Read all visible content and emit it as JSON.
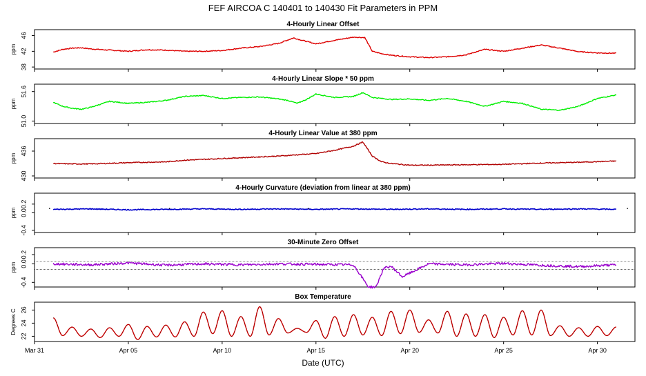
{
  "chart_data": {
    "type": "line",
    "title": "FEF   AIRCOA C  140401 to 140430   Fit Parameters in PPM",
    "xlabel": "Date (UTC)",
    "x_range": [
      "2014-03-31",
      "2014-05-02"
    ],
    "x_ticks": [
      "Mar 31",
      "Apr 05",
      "Apr 10",
      "Apr 15",
      "Apr 20",
      "Apr 25",
      "Apr 30"
    ],
    "x_tick_days": [
      0,
      5,
      10,
      15,
      20,
      25,
      30
    ],
    "x_data_range_days": [
      1,
      31
    ],
    "panels": [
      {
        "title": "4-Hourly Linear Offset",
        "ylabel": "ppm",
        "ylim": [
          37.5,
          47.5
        ],
        "yticks": [
          38,
          42,
          46
        ],
        "color": "#dd0000",
        "days": [
          1,
          1.5,
          2,
          2.5,
          3,
          4,
          5,
          6,
          7,
          8,
          9,
          10,
          11,
          12,
          13,
          13.8,
          14.5,
          15,
          16,
          17,
          17.6,
          18,
          18.5,
          19,
          20,
          21,
          22,
          23,
          24,
          25,
          26,
          27,
          28,
          29,
          30,
          31
        ],
        "values": [
          41.8,
          42.5,
          42.8,
          42.9,
          42.6,
          42.3,
          42.0,
          42.4,
          42.3,
          42.0,
          42.0,
          42.2,
          42.8,
          43.2,
          44.0,
          45.4,
          44.5,
          43.9,
          44.8,
          45.6,
          45.5,
          42.0,
          41.4,
          41.0,
          40.6,
          40.4,
          40.6,
          41.1,
          42.5,
          42.0,
          42.8,
          43.6,
          42.8,
          41.9,
          41.6,
          41.5
        ]
      },
      {
        "title": "4-Hourly Linear Slope * 50 ppm",
        "ylabel": "ppm",
        "ylim": [
          50.95,
          51.75
        ],
        "yticks": [
          51.0,
          51.6
        ],
        "ytick_labels": [
          "51.0",
          "51.6"
        ],
        "color": "#00ee00",
        "days": [
          1,
          1.5,
          2,
          2.5,
          3,
          4,
          5,
          6,
          7,
          8,
          9,
          10,
          11,
          12,
          13,
          13.5,
          14,
          14.5,
          15,
          16,
          17,
          17.5,
          18,
          19,
          20,
          21,
          22,
          23,
          24,
          25,
          26,
          27,
          28,
          29,
          30,
          31
        ],
        "values": [
          51.38,
          51.3,
          51.26,
          51.24,
          51.28,
          51.4,
          51.36,
          51.38,
          51.42,
          51.5,
          51.52,
          51.46,
          51.48,
          51.49,
          51.45,
          51.42,
          51.36,
          51.44,
          51.55,
          51.48,
          51.5,
          51.58,
          51.48,
          51.44,
          51.45,
          51.42,
          51.46,
          51.4,
          51.3,
          51.4,
          51.36,
          51.24,
          51.22,
          51.3,
          51.46,
          51.53
        ]
      },
      {
        "title": "4-Hourly Linear Value at 380 ppm",
        "ylabel": "ppm",
        "ylim": [
          429.5,
          439.0
        ],
        "yticks": [
          430,
          436
        ],
        "color": "#b00000",
        "days": [
          1,
          2,
          3,
          5,
          7,
          8,
          9,
          11,
          13,
          15,
          16,
          17,
          17.5,
          18,
          18.5,
          19,
          20,
          21,
          23,
          25,
          27,
          29,
          31
        ],
        "values": [
          433.0,
          432.9,
          432.9,
          433.2,
          433.4,
          433.8,
          434.0,
          434.4,
          434.8,
          435.4,
          436.2,
          437.2,
          438.2,
          434.8,
          433.4,
          433.0,
          432.6,
          432.6,
          432.7,
          432.8,
          433.1,
          433.3,
          433.6
        ]
      },
      {
        "title": "4-Hourly Curvature (deviation from linear at 380 ppm)",
        "ylabel": "ppm",
        "ylim": [
          -0.45,
          0.45
        ],
        "yticks": [
          -0.4,
          0.0,
          0.2
        ],
        "ytick_labels": [
          "-0.4",
          "0.0",
          "0.2"
        ],
        "color": "#0000cc",
        "days": [
          1,
          3,
          5,
          7,
          9,
          11,
          13,
          15,
          17,
          19,
          21,
          23,
          25,
          27,
          29,
          31
        ],
        "values": [
          0.08,
          0.09,
          0.07,
          0.08,
          0.09,
          0.08,
          0.09,
          0.08,
          0.09,
          0.08,
          0.09,
          0.08,
          0.09,
          0.08,
          0.09,
          0.08
        ]
      },
      {
        "title": "30-Minute Zero Offset",
        "ylabel": "ppm",
        "ylim": [
          -0.5,
          0.35
        ],
        "yticks": [
          -0.4,
          0.0,
          0.2
        ],
        "ytick_labels": [
          "-0.4",
          "0.0",
          "0.2"
        ],
        "ref_lines": [
          0.05,
          -0.12
        ],
        "color": "#9900cc",
        "days": [
          1,
          3,
          5,
          7,
          9,
          11,
          13,
          15,
          17,
          17.8,
          18.2,
          18.6,
          19.0,
          19.6,
          21,
          23,
          25,
          27,
          29,
          31
        ],
        "values": [
          0.0,
          -0.02,
          0.02,
          -0.03,
          0.0,
          -0.02,
          0.0,
          -0.01,
          -0.02,
          -0.5,
          -0.5,
          -0.1,
          -0.05,
          -0.28,
          0.0,
          -0.02,
          0.01,
          -0.03,
          -0.06,
          -0.02
        ]
      },
      {
        "title": "Box Temperature",
        "ylabel": "Degrees C",
        "ylim": [
          21.2,
          27.2
        ],
        "yticks": [
          22,
          24,
          26
        ],
        "color": "#cc0000",
        "peak_days": [
          1,
          2,
          3,
          4,
          5,
          6,
          7,
          8,
          9,
          10,
          11,
          12,
          13,
          14,
          15,
          16,
          17,
          18,
          19,
          20,
          21,
          22,
          23,
          24,
          25,
          26,
          27,
          28,
          29,
          30,
          31
        ],
        "peak_values": [
          24.8,
          23.4,
          23.1,
          23.3,
          23.8,
          23.5,
          23.7,
          24.2,
          25.7,
          25.9,
          25.0,
          26.5,
          24.7,
          23.2,
          24.4,
          25.0,
          25.3,
          24.9,
          25.8,
          26.0,
          24.5,
          25.8,
          25.4,
          25.3,
          24.9,
          25.9,
          26.0,
          23.6,
          23.3,
          23.5,
          23.4
        ],
        "trough_values": [
          22.1,
          22.0,
          21.8,
          22.0,
          21.5,
          21.9,
          21.9,
          22.0,
          22.4,
          22.0,
          22.0,
          22.2,
          22.5,
          22.6,
          21.7,
          22.0,
          22.2,
          22.1,
          22.4,
          22.6,
          22.5,
          22.0,
          22.0,
          21.8,
          22.2,
          22.2,
          22.1,
          22.0,
          22.0,
          22.1
        ]
      }
    ]
  }
}
